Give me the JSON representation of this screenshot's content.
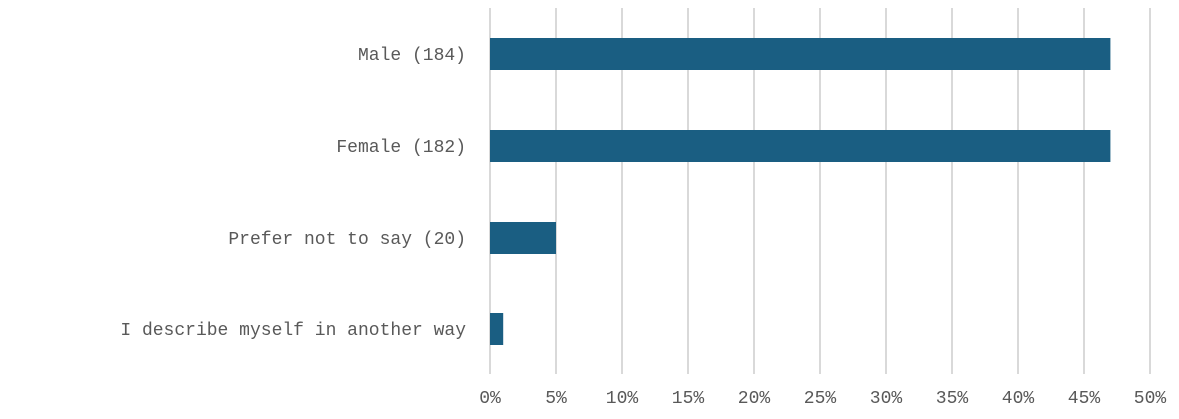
{
  "chart_data": {
    "type": "bar",
    "orientation": "horizontal",
    "categories": [
      "Male (184)",
      "Female (182)",
      "Prefer not to say (20)",
      "I describe myself in another way"
    ],
    "values": [
      47,
      47,
      5,
      1
    ],
    "unit": "%",
    "xlim": [
      0,
      50
    ],
    "x_ticks": [
      "0%",
      "5%",
      "10%",
      "15%",
      "20%",
      "25%",
      "30%",
      "35%",
      "40%",
      "45%",
      "50%"
    ],
    "title": "",
    "xlabel": "",
    "ylabel": "",
    "grid": "vertical",
    "legend": "none",
    "colors": {
      "bar": "#1a5e82",
      "grid": "#d9d9d9",
      "text": "#595959"
    }
  }
}
